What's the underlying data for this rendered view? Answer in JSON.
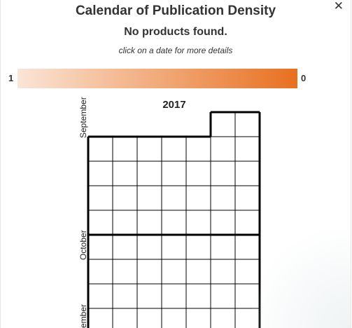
{
  "dialog": {
    "title": "Calendar of Publication Density",
    "subtitle": "No products found.",
    "hint": "click on a date for more details",
    "close_icon": "close-icon"
  },
  "legend": {
    "min_label": "1",
    "max_label": "0",
    "colors": {
      "start": "#fae5d6",
      "end": "#e8701f"
    }
  },
  "calendar": {
    "year": "2017",
    "months": [
      {
        "label": "September"
      },
      {
        "label": "October"
      },
      {
        "label": "ember"
      }
    ]
  }
}
